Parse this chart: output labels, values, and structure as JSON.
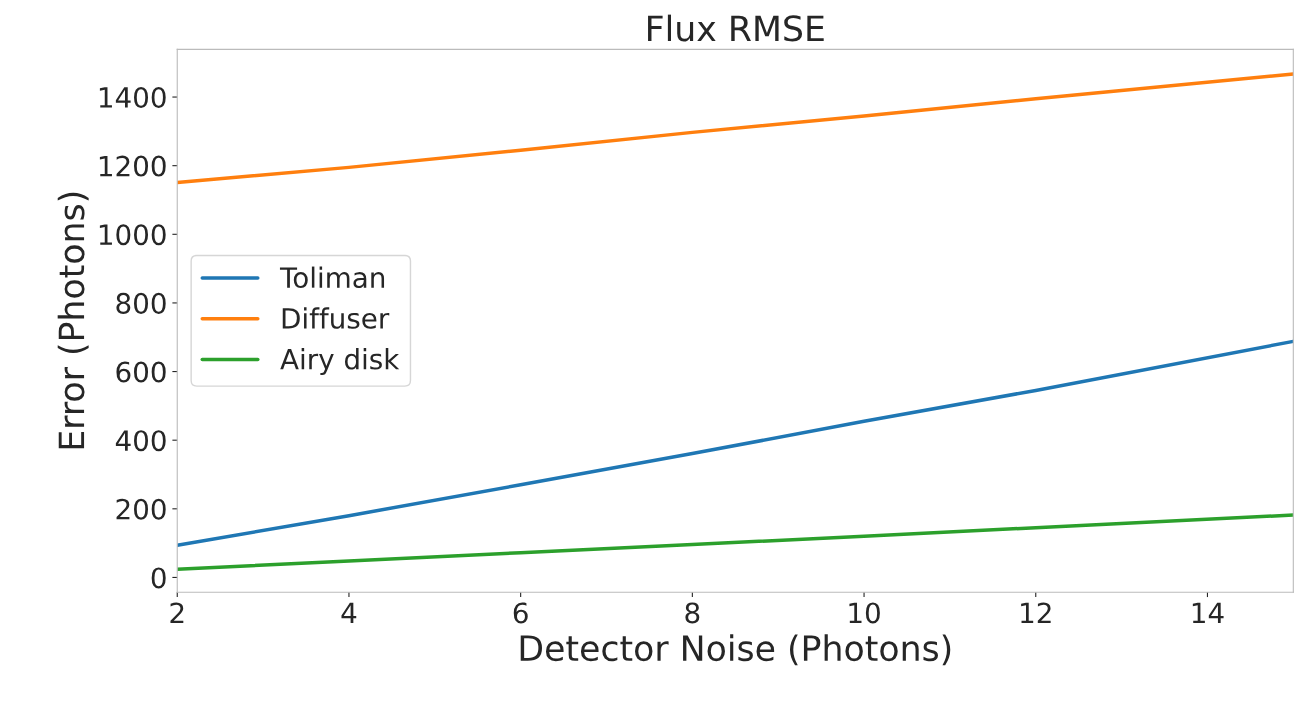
{
  "chart_data": {
    "type": "line",
    "title": "Flux RMSE",
    "xlabel": "Detector Noise (Photons)",
    "ylabel": "Error (Photons)",
    "xlim": [
      2,
      15
    ],
    "ylim": [
      -43,
      1539
    ],
    "xticks": [
      2,
      4,
      6,
      8,
      10,
      12,
      14
    ],
    "yticks": [
      0,
      200,
      400,
      600,
      800,
      1000,
      1200,
      1400
    ],
    "x": [
      2,
      4,
      6,
      8,
      10,
      12,
      15
    ],
    "series": [
      {
        "name": "Toliman",
        "color": "#1f77b4",
        "values": [
          94,
          180,
          270,
          361,
          455,
          545,
          688
        ]
      },
      {
        "name": "Diffuser",
        "color": "#ff7f0e",
        "values": [
          1151,
          1195,
          1245,
          1297,
          1345,
          1395,
          1467
        ]
      },
      {
        "name": "Airy disk",
        "color": "#2ca02c",
        "values": [
          24,
          48,
          72,
          96,
          120,
          145,
          182
        ]
      }
    ],
    "legend": "center left",
    "grid": false
  }
}
